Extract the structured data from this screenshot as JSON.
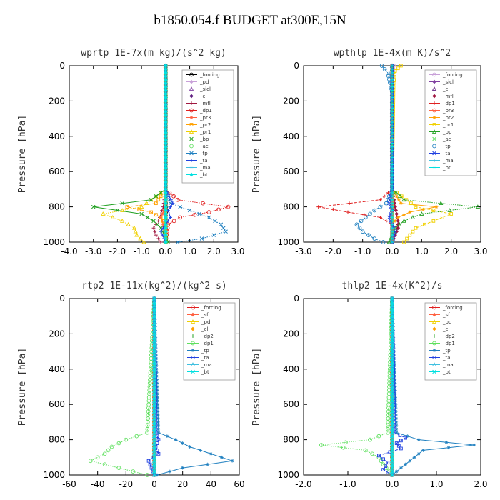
{
  "title": "b1850.054.f  BUDGET at300E,15N",
  "chart_data": [
    {
      "type": "line",
      "title": "wprtp  1E-7x(m kg)/(s^2 kg)",
      "ylabel": "Pressure [hPa]",
      "xlim": [
        -4,
        3
      ],
      "ylim": [
        1000,
        0
      ],
      "xticks": [
        "-4.0",
        "-3.0",
        "-2.0",
        "-1.0",
        "0.0",
        "1.0",
        "2.0",
        "3.0"
      ],
      "xtick_values": [
        -4,
        -3,
        -2,
        -1,
        0,
        1,
        2,
        3
      ],
      "yticks": [
        "0",
        "200",
        "400",
        "600",
        "800",
        "1000"
      ],
      "ytick_values": [
        0,
        200,
        400,
        600,
        800,
        1000
      ],
      "legend_position": "top-right",
      "series": [
        {
          "name": "_forcing",
          "color": "#000000",
          "y": [
            0,
            700,
            760,
            800,
            850,
            900,
            950,
            1000
          ],
          "x": [
            0,
            0,
            0,
            0.02,
            0,
            0,
            0,
            0
          ]
        },
        {
          "name": "_pd",
          "color": "#c8a0d8",
          "y": [
            0,
            700,
            800,
            900,
            1000
          ],
          "x": [
            0,
            0,
            0,
            0,
            0
          ]
        },
        {
          "name": "_sicl",
          "color": "#8040a0",
          "y": [
            0,
            700,
            800,
            900,
            1000
          ],
          "x": [
            0,
            0,
            0,
            0,
            0
          ]
        },
        {
          "name": "_cl",
          "color": "#602080",
          "y": [
            0,
            700,
            800,
            900,
            1000
          ],
          "x": [
            0,
            0,
            0,
            0,
            0
          ]
        },
        {
          "name": "_mfl",
          "color": "#a01840",
          "y": [
            0,
            700,
            800,
            880,
            920,
            960,
            1000
          ],
          "x": [
            0,
            0,
            -0.1,
            -0.3,
            -0.5,
            -0.4,
            -0.2
          ]
        },
        {
          "name": "_dp1",
          "color": "#e02020",
          "y": [
            0,
            700,
            760,
            800,
            830,
            860,
            900,
            1000
          ],
          "x": [
            0,
            0,
            0.5,
            2.6,
            1.8,
            0.6,
            0.1,
            0
          ]
        },
        {
          "name": "_pr3",
          "color": "#ff6040",
          "y": [
            0,
            700,
            800,
            860,
            900,
            1000
          ],
          "x": [
            0,
            0,
            0,
            -0.2,
            -0.1,
            0
          ]
        },
        {
          "name": "_pr2",
          "color": "#ffa000",
          "y": [
            0,
            700,
            780,
            800,
            830,
            860,
            900,
            1000
          ],
          "x": [
            0,
            0,
            -0.4,
            -1.6,
            -0.6,
            -0.2,
            0,
            0
          ]
        },
        {
          "name": "_pr1",
          "color": "#f0d000",
          "y": [
            0,
            700,
            800,
            840,
            880,
            920,
            960,
            1000
          ],
          "x": [
            0,
            0,
            -1.0,
            -2.6,
            -1.8,
            -1.3,
            -1.2,
            -0.9
          ]
        },
        {
          "name": "_bp",
          "color": "#20a020",
          "y": [
            0,
            700,
            760,
            800,
            840,
            880,
            920,
            1000
          ],
          "x": [
            0,
            0,
            -0.6,
            -3.0,
            -1.0,
            -0.5,
            -0.2,
            0.1
          ]
        },
        {
          "name": "_ac",
          "color": "#60e060",
          "y": [
            0,
            700,
            800,
            900,
            1000
          ],
          "x": [
            0,
            0,
            0,
            0,
            0
          ]
        },
        {
          "name": "_tp",
          "color": "#2080c0",
          "y": [
            0,
            700,
            780,
            820,
            860,
            900,
            940,
            980,
            1000
          ],
          "x": [
            0,
            0,
            0.2,
            1.0,
            1.8,
            2.3,
            2.5,
            1.5,
            0.5
          ]
        },
        {
          "name": "_ta",
          "color": "#2040e0",
          "y": [
            0,
            700,
            780,
            820,
            860,
            900,
            940,
            1000
          ],
          "x": [
            0,
            0,
            0.3,
            0.1,
            0.2,
            0,
            -0.2,
            0
          ]
        },
        {
          "name": "_ma",
          "color": "#40c0e0",
          "y": [
            0,
            700,
            800,
            900,
            1000
          ],
          "x": [
            0,
            0,
            0,
            0,
            0
          ]
        },
        {
          "name": "_bt",
          "color": "#00e0e0",
          "y": [
            0,
            700,
            800,
            900,
            1000
          ],
          "x": [
            0,
            0,
            0,
            0,
            0
          ]
        }
      ]
    },
    {
      "type": "line",
      "title": "wpthlp  1E-4x(m K)/s^2",
      "ylabel": "Pressure [hPa]",
      "xlim": [
        -3,
        3
      ],
      "ylim": [
        1000,
        0
      ],
      "xticks": [
        "-3.0",
        "-2.0",
        "-1.0",
        "0.0",
        "1.0",
        "2.0",
        "3.0"
      ],
      "xtick_values": [
        -3,
        -2,
        -1,
        0,
        1,
        2,
        3
      ],
      "yticks": [
        "0",
        "200",
        "400",
        "600",
        "800",
        "1000"
      ],
      "ytick_values": [
        0,
        200,
        400,
        600,
        800,
        1000
      ],
      "legend_position": "top-right",
      "series": [
        {
          "name": "_forcing",
          "color": "#c8a0d8",
          "y": [
            0,
            100,
            300,
            700,
            800,
            900,
            1000
          ],
          "x": [
            0.05,
            0,
            0,
            0,
            0,
            0,
            0
          ]
        },
        {
          "name": "_sicl",
          "color": "#8040a0",
          "y": [
            0,
            700,
            800,
            900,
            1000
          ],
          "x": [
            0,
            0,
            0,
            0,
            0
          ]
        },
        {
          "name": "_cl",
          "color": "#602080",
          "y": [
            0,
            700,
            800,
            900,
            1000
          ],
          "x": [
            0,
            0,
            0,
            0,
            0
          ]
        },
        {
          "name": "_mfl",
          "color": "#a01840",
          "y": [
            0,
            700,
            800,
            880,
            920,
            960,
            1000
          ],
          "x": [
            0,
            0,
            0.1,
            0.2,
            0.2,
            0.1,
            0
          ]
        },
        {
          "name": "_dp1",
          "color": "#e02020",
          "y": [
            0,
            700,
            760,
            800,
            830,
            860,
            900,
            1000
          ],
          "x": [
            0,
            0,
            -0.4,
            -2.5,
            -1.5,
            -0.4,
            0,
            0
          ]
        },
        {
          "name": "_pr3",
          "color": "#ff6040",
          "y": [
            0,
            700,
            800,
            900,
            1000
          ],
          "x": [
            0,
            0,
            0,
            0,
            0
          ]
        },
        {
          "name": "_pr2",
          "color": "#ffa000",
          "y": [
            0,
            700,
            780,
            800,
            830,
            860,
            900,
            1000
          ],
          "x": [
            0,
            0,
            0.3,
            1.5,
            0.6,
            0.2,
            0,
            0
          ]
        },
        {
          "name": "_pr1",
          "color": "#f0d000",
          "y": [
            0,
            30,
            100,
            700,
            800,
            840,
            880,
            920,
            960,
            1000
          ],
          "x": [
            0.3,
            0.1,
            0.05,
            0,
            0.8,
            2.0,
            1.4,
            0.8,
            0.6,
            0.4
          ]
        },
        {
          "name": "_bp",
          "color": "#20a020",
          "y": [
            0,
            700,
            760,
            800,
            840,
            880,
            920,
            1000
          ],
          "x": [
            0,
            0,
            0.4,
            2.9,
            1.0,
            0.4,
            0.1,
            -0.1
          ]
        },
        {
          "name": "_ac",
          "color": "#60e060",
          "y": [
            0,
            700,
            800,
            900,
            1000
          ],
          "x": [
            0,
            0,
            0,
            0,
            0
          ]
        },
        {
          "name": "_tp",
          "color": "#2080c0",
          "y": [
            0,
            40,
            150,
            700,
            780,
            820,
            860,
            900,
            940,
            980,
            1000
          ],
          "x": [
            -0.35,
            -0.15,
            0,
            0,
            -0.2,
            -0.6,
            -0.9,
            -1.2,
            -1.0,
            -0.6,
            -0.3
          ]
        },
        {
          "name": "_ta",
          "color": "#2040e0",
          "y": [
            0,
            700,
            780,
            820,
            860,
            900,
            940,
            1000
          ],
          "x": [
            0,
            0,
            -0.1,
            0,
            -0.1,
            0,
            0.1,
            0
          ]
        },
        {
          "name": "_ma",
          "color": "#40c0e0",
          "y": [
            0,
            700,
            800,
            900,
            1000
          ],
          "x": [
            0,
            0,
            0,
            0,
            0
          ]
        },
        {
          "name": "_bt",
          "color": "#00e0e0",
          "y": [
            0,
            700,
            800,
            900,
            1000
          ],
          "x": [
            0,
            0,
            0,
            0,
            0
          ]
        }
      ]
    },
    {
      "type": "line",
      "title": "rtp2  1E-11x(kg^2)/(kg^2 s)",
      "ylabel": "Pressure [hPa]",
      "xlim": [
        -60,
        60
      ],
      "ylim": [
        1000,
        0
      ],
      "xticks": [
        "-60",
        "-40",
        "-20",
        "0",
        "20",
        "40",
        "60"
      ],
      "xtick_values": [
        -60,
        -40,
        -20,
        0,
        20,
        40,
        60
      ],
      "yticks": [
        "0",
        "200",
        "400",
        "600",
        "800",
        "1000"
      ],
      "ytick_values": [
        0,
        200,
        400,
        600,
        800,
        1000
      ],
      "legend_position": "top-right",
      "series": [
        {
          "name": "_forcing",
          "color": "#e02020",
          "y": [
            0,
            700,
            800,
            900,
            1000
          ],
          "x": [
            0,
            0,
            0,
            0,
            0
          ]
        },
        {
          "name": "_sf",
          "color": "#ff6040",
          "y": [
            0,
            700,
            800,
            900,
            1000
          ],
          "x": [
            0,
            0,
            0,
            0,
            0
          ]
        },
        {
          "name": "_pd",
          "color": "#f0d000",
          "y": [
            0,
            700,
            800,
            900,
            1000
          ],
          "x": [
            0,
            0,
            0,
            0,
            0
          ]
        },
        {
          "name": "_cl",
          "color": "#ffa000",
          "y": [
            0,
            700,
            800,
            900,
            1000
          ],
          "x": [
            0,
            0,
            0,
            0,
            0
          ]
        },
        {
          "name": "_dp2",
          "color": "#20a020",
          "y": [
            0,
            700,
            800,
            900,
            1000
          ],
          "x": [
            0,
            0,
            0,
            0,
            0
          ]
        },
        {
          "name": "_dp1",
          "color": "#60e060",
          "y": [
            0,
            760,
            800,
            840,
            880,
            920,
            960,
            1000
          ],
          "x": [
            0,
            -5,
            -20,
            -30,
            -35,
            -45,
            -25,
            -5
          ]
        },
        {
          "name": "_tp",
          "color": "#2080c0",
          "y": [
            0,
            760,
            800,
            840,
            880,
            920,
            960,
            1000
          ],
          "x": [
            0,
            3,
            15,
            25,
            40,
            55,
            20,
            2
          ]
        },
        {
          "name": "_ta",
          "color": "#2040e0",
          "y": [
            0,
            760,
            800,
            840,
            880,
            920,
            960,
            1000
          ],
          "x": [
            0,
            1,
            3,
            1,
            3,
            -4,
            -2,
            0
          ]
        },
        {
          "name": "_ma",
          "color": "#40c0e0",
          "y": [
            0,
            700,
            800,
            900,
            1000
          ],
          "x": [
            0,
            0,
            0,
            0,
            0
          ]
        },
        {
          "name": "_bt",
          "color": "#00e0e0",
          "y": [
            0,
            700,
            800,
            900,
            1000
          ],
          "x": [
            0,
            0,
            0,
            0,
            0
          ]
        }
      ]
    },
    {
      "type": "line",
      "title": "thlp2  1E-4x(K^2)/s",
      "ylabel": "Pressure [hPa]",
      "xlim": [
        -2,
        2
      ],
      "ylim": [
        1000,
        0
      ],
      "xticks": [
        "-2.0",
        "-1.0",
        "0.0",
        "1.0",
        "2.0"
      ],
      "xtick_values": [
        -2,
        -1,
        0,
        1,
        2
      ],
      "yticks": [
        "0",
        "200",
        "400",
        "600",
        "800",
        "1000"
      ],
      "ytick_values": [
        0,
        200,
        400,
        600,
        800,
        1000
      ],
      "legend_position": "top-right",
      "series": [
        {
          "name": "_forcing",
          "color": "#e02020",
          "y": [
            0,
            700,
            800,
            900,
            1000
          ],
          "x": [
            0,
            0,
            0,
            0,
            0
          ]
        },
        {
          "name": "_sf",
          "color": "#ff6040",
          "y": [
            0,
            700,
            800,
            900,
            1000
          ],
          "x": [
            0,
            0,
            0,
            0,
            0
          ]
        },
        {
          "name": "_pd",
          "color": "#f0d000",
          "y": [
            0,
            700,
            800,
            900,
            1000
          ],
          "x": [
            0,
            0,
            0,
            0,
            0
          ]
        },
        {
          "name": "_cl",
          "color": "#ffa000",
          "y": [
            0,
            700,
            800,
            900,
            1000
          ],
          "x": [
            0,
            0,
            0,
            0,
            0
          ]
        },
        {
          "name": "_dp2",
          "color": "#20a020",
          "y": [
            0,
            700,
            800,
            900,
            1000
          ],
          "x": [
            0,
            0,
            0,
            0,
            0
          ]
        },
        {
          "name": "_dp1",
          "color": "#60e060",
          "y": [
            0,
            760,
            800,
            830,
            860,
            900,
            940,
            1000
          ],
          "x": [
            0,
            -0.1,
            -0.5,
            -1.6,
            -0.6,
            -0.3,
            -0.2,
            0
          ]
        },
        {
          "name": "_tp",
          "color": "#2080c0",
          "y": [
            0,
            760,
            800,
            830,
            860,
            900,
            940,
            1000
          ],
          "x": [
            0,
            0.1,
            0.6,
            1.85,
            0.7,
            0.5,
            0.3,
            0
          ]
        },
        {
          "name": "_ta",
          "color": "#2040e0",
          "y": [
            0,
            760,
            790,
            820,
            850,
            890,
            930,
            970,
            1000
          ],
          "x": [
            0,
            0.05,
            0.3,
            0.1,
            0.2,
            -0.3,
            -0.1,
            -0.2,
            0
          ]
        },
        {
          "name": "_ma",
          "color": "#40c0e0",
          "y": [
            0,
            700,
            800,
            900,
            1000
          ],
          "x": [
            0,
            0,
            0,
            0,
            0
          ]
        },
        {
          "name": "_bt",
          "color": "#00e0e0",
          "y": [
            0,
            700,
            800,
            900,
            1000
          ],
          "x": [
            0,
            0,
            0,
            0,
            0
          ]
        }
      ]
    }
  ]
}
